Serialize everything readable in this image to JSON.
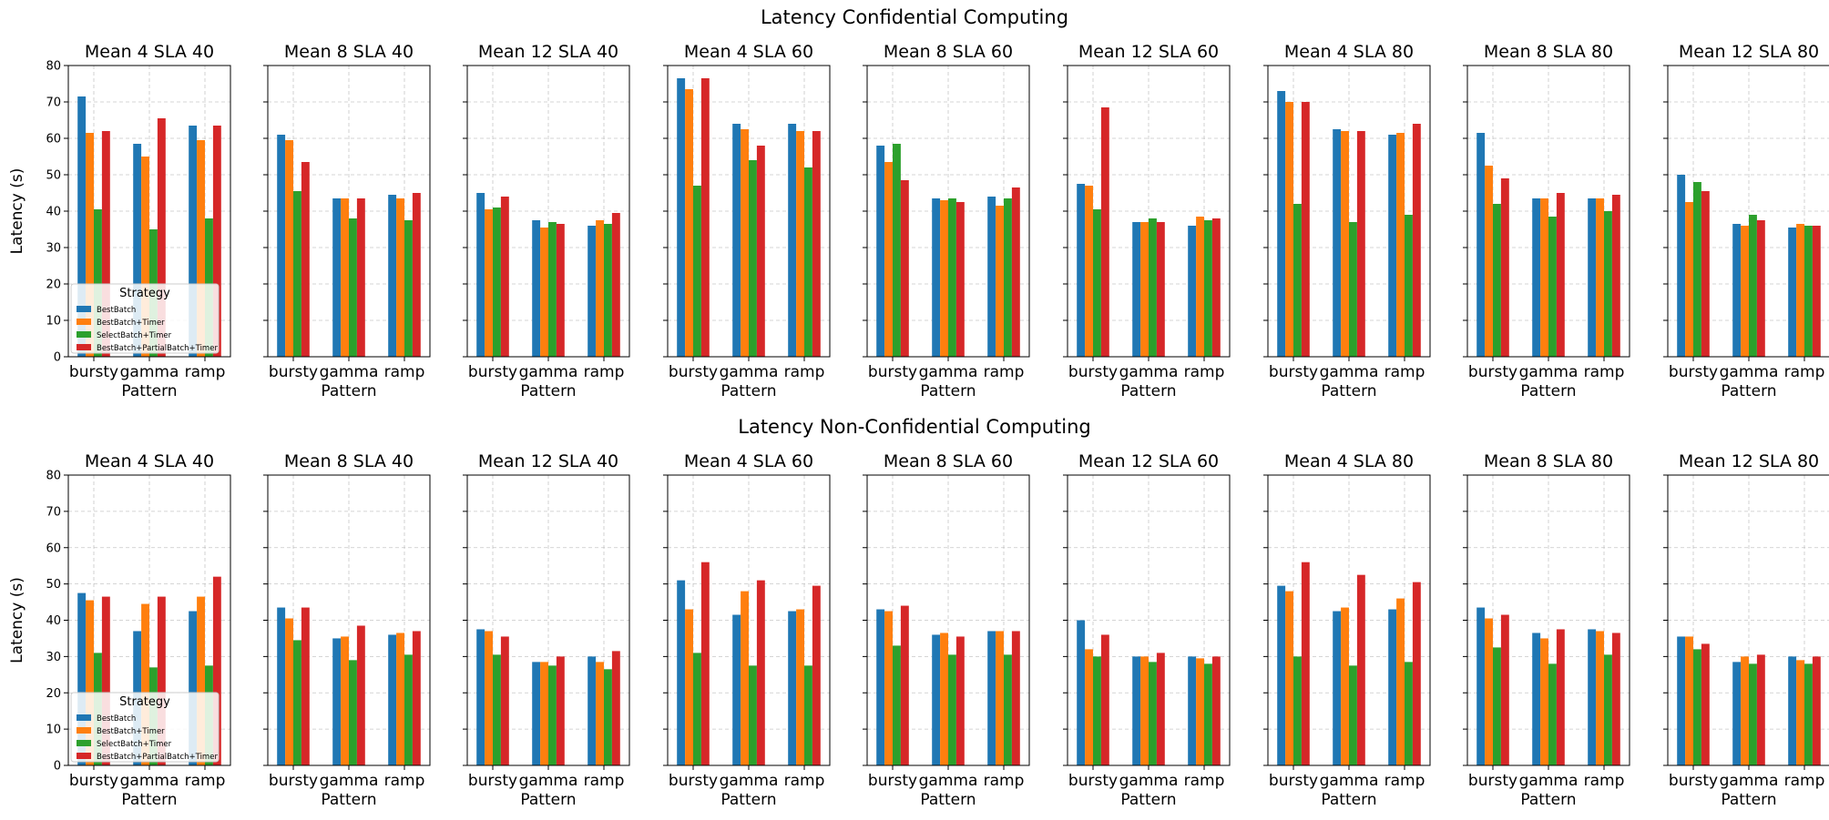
{
  "figure": {
    "row_titles": [
      "Latency Confidential Computing",
      "Latency Non-Confidential Computing"
    ]
  },
  "colors": {
    "BestBatch": "#1f77b4",
    "BestBatch+Timer": "#ff7f0e",
    "SelectBatch+Timer": "#2ca02c",
    "BestBatch+PartialBatch+Timer": "#d62728"
  },
  "chart_data": {
    "type": "bar",
    "categories": [
      "bursty",
      "gamma",
      "ramp"
    ],
    "xlabel": "Pattern",
    "ylabel": "Latency (s)",
    "ylim": [
      0,
      80
    ],
    "yticks": [
      0,
      10,
      20,
      30,
      40,
      50,
      60,
      70,
      80
    ],
    "grid": true,
    "legend": {
      "title": "Strategy",
      "placement": "lower-left (first panel of each row)",
      "entries": [
        "BestBatch",
        "BestBatch+Timer",
        "SelectBatch+Timer",
        "BestBatch+PartialBatch+Timer"
      ]
    },
    "rows": [
      {
        "title": "Latency Confidential Computing",
        "panels": [
          {
            "title": "Mean 4 SLA 40",
            "series": [
              {
                "name": "BestBatch",
                "values": [
                  71.5,
                  58.5,
                  63.5
                ]
              },
              {
                "name": "BestBatch+Timer",
                "values": [
                  61.5,
                  55,
                  59.5
                ]
              },
              {
                "name": "SelectBatch+Timer",
                "values": [
                  40.5,
                  35,
                  38
                ]
              },
              {
                "name": "BestBatch+PartialBatch+Timer",
                "values": [
                  62,
                  65.5,
                  63.5
                ]
              }
            ]
          },
          {
            "title": "Mean 8 SLA 40",
            "series": [
              {
                "name": "BestBatch",
                "values": [
                  61,
                  43.5,
                  44.5
                ]
              },
              {
                "name": "BestBatch+Timer",
                "values": [
                  59.5,
                  43.5,
                  43.5
                ]
              },
              {
                "name": "SelectBatch+Timer",
                "values": [
                  45.5,
                  38,
                  37.5
                ]
              },
              {
                "name": "BestBatch+PartialBatch+Timer",
                "values": [
                  53.5,
                  43.5,
                  45
                ]
              }
            ]
          },
          {
            "title": "Mean 12 SLA 40",
            "series": [
              {
                "name": "BestBatch",
                "values": [
                  45,
                  37.5,
                  36
                ]
              },
              {
                "name": "BestBatch+Timer",
                "values": [
                  40.5,
                  35.5,
                  37.5
                ]
              },
              {
                "name": "SelectBatch+Timer",
                "values": [
                  41,
                  37,
                  36.5
                ]
              },
              {
                "name": "BestBatch+PartialBatch+Timer",
                "values": [
                  44,
                  36.5,
                  39.5
                ]
              }
            ]
          },
          {
            "title": "Mean 4 SLA 60",
            "series": [
              {
                "name": "BestBatch",
                "values": [
                  76.5,
                  64,
                  64
                ]
              },
              {
                "name": "BestBatch+Timer",
                "values": [
                  73.5,
                  62.5,
                  62
                ]
              },
              {
                "name": "SelectBatch+Timer",
                "values": [
                  47,
                  54,
                  52
                ]
              },
              {
                "name": "BestBatch+PartialBatch+Timer",
                "values": [
                  76.5,
                  58,
                  62
                ]
              }
            ]
          },
          {
            "title": "Mean 8 SLA 60",
            "series": [
              {
                "name": "BestBatch",
                "values": [
                  58,
                  43.5,
                  44
                ]
              },
              {
                "name": "BestBatch+Timer",
                "values": [
                  53.5,
                  43,
                  41.5
                ]
              },
              {
                "name": "SelectBatch+Timer",
                "values": [
                  58.5,
                  43.5,
                  43.5
                ]
              },
              {
                "name": "BestBatch+PartialBatch+Timer",
                "values": [
                  48.5,
                  42.5,
                  46.5
                ]
              }
            ]
          },
          {
            "title": "Mean 12 SLA 60",
            "series": [
              {
                "name": "BestBatch",
                "values": [
                  47.5,
                  37,
                  36
                ]
              },
              {
                "name": "BestBatch+Timer",
                "values": [
                  47,
                  37,
                  38.5
                ]
              },
              {
                "name": "SelectBatch+Timer",
                "values": [
                  40.5,
                  38,
                  37.5
                ]
              },
              {
                "name": "BestBatch+PartialBatch+Timer",
                "values": [
                  68.5,
                  37,
                  38
                ]
              }
            ]
          },
          {
            "title": "Mean 4 SLA 80",
            "series": [
              {
                "name": "BestBatch",
                "values": [
                  73,
                  62.5,
                  61
                ]
              },
              {
                "name": "BestBatch+Timer",
                "values": [
                  70,
                  62,
                  61.5
                ]
              },
              {
                "name": "SelectBatch+Timer",
                "values": [
                  42,
                  37,
                  39
                ]
              },
              {
                "name": "BestBatch+PartialBatch+Timer",
                "values": [
                  70,
                  62,
                  64
                ]
              }
            ]
          },
          {
            "title": "Mean 8 SLA 80",
            "series": [
              {
                "name": "BestBatch",
                "values": [
                  61.5,
                  43.5,
                  43.5
                ]
              },
              {
                "name": "BestBatch+Timer",
                "values": [
                  52.5,
                  43.5,
                  43.5
                ]
              },
              {
                "name": "SelectBatch+Timer",
                "values": [
                  42,
                  38.5,
                  40
                ]
              },
              {
                "name": "BestBatch+PartialBatch+Timer",
                "values": [
                  49,
                  45,
                  44.5
                ]
              }
            ]
          },
          {
            "title": "Mean 12 SLA 80",
            "series": [
              {
                "name": "BestBatch",
                "values": [
                  50,
                  36.5,
                  35.5
                ]
              },
              {
                "name": "BestBatch+Timer",
                "values": [
                  42.5,
                  36,
                  36.5
                ]
              },
              {
                "name": "SelectBatch+Timer",
                "values": [
                  48,
                  39,
                  36
                ]
              },
              {
                "name": "BestBatch+PartialBatch+Timer",
                "values": [
                  45.5,
                  37.5,
                  36
                ]
              }
            ]
          }
        ]
      },
      {
        "title": "Latency Non-Confidential Computing",
        "panels": [
          {
            "title": "Mean 4 SLA 40",
            "series": [
              {
                "name": "BestBatch",
                "values": [
                  47.5,
                  37,
                  42.5
                ]
              },
              {
                "name": "BestBatch+Timer",
                "values": [
                  45.5,
                  44.5,
                  46.5
                ]
              },
              {
                "name": "SelectBatch+Timer",
                "values": [
                  31,
                  27,
                  27.5
                ]
              },
              {
                "name": "BestBatch+PartialBatch+Timer",
                "values": [
                  46.5,
                  46.5,
                  52
                ]
              }
            ]
          },
          {
            "title": "Mean 8 SLA 40",
            "series": [
              {
                "name": "BestBatch",
                "values": [
                  43.5,
                  35,
                  36
                ]
              },
              {
                "name": "BestBatch+Timer",
                "values": [
                  40.5,
                  35.5,
                  36.5
                ]
              },
              {
                "name": "SelectBatch+Timer",
                "values": [
                  34.5,
                  29,
                  30.5
                ]
              },
              {
                "name": "BestBatch+PartialBatch+Timer",
                "values": [
                  43.5,
                  38.5,
                  37
                ]
              }
            ]
          },
          {
            "title": "Mean 12 SLA 40",
            "series": [
              {
                "name": "BestBatch",
                "values": [
                  37.5,
                  28.5,
                  30
                ]
              },
              {
                "name": "BestBatch+Timer",
                "values": [
                  37,
                  28.5,
                  28.5
                ]
              },
              {
                "name": "SelectBatch+Timer",
                "values": [
                  30.5,
                  27.5,
                  26.5
                ]
              },
              {
                "name": "BestBatch+PartialBatch+Timer",
                "values": [
                  35.5,
                  30,
                  31.5
                ]
              }
            ]
          },
          {
            "title": "Mean 4 SLA 60",
            "series": [
              {
                "name": "BestBatch",
                "values": [
                  51,
                  41.5,
                  42.5
                ]
              },
              {
                "name": "BestBatch+Timer",
                "values": [
                  43,
                  48,
                  43
                ]
              },
              {
                "name": "SelectBatch+Timer",
                "values": [
                  31,
                  27.5,
                  27.5
                ]
              },
              {
                "name": "BestBatch+PartialBatch+Timer",
                "values": [
                  56,
                  51,
                  49.5
                ]
              }
            ]
          },
          {
            "title": "Mean 8 SLA 60",
            "series": [
              {
                "name": "BestBatch",
                "values": [
                  43,
                  36,
                  37
                ]
              },
              {
                "name": "BestBatch+Timer",
                "values": [
                  42.5,
                  36.5,
                  37
                ]
              },
              {
                "name": "SelectBatch+Timer",
                "values": [
                  33,
                  30.5,
                  30.5
                ]
              },
              {
                "name": "BestBatch+PartialBatch+Timer",
                "values": [
                  44,
                  35.5,
                  37
                ]
              }
            ]
          },
          {
            "title": "Mean 12 SLA 60",
            "series": [
              {
                "name": "BestBatch",
                "values": [
                  40,
                  30,
                  30
                ]
              },
              {
                "name": "BestBatch+Timer",
                "values": [
                  32,
                  30,
                  29.5
                ]
              },
              {
                "name": "SelectBatch+Timer",
                "values": [
                  30,
                  28.5,
                  28
                ]
              },
              {
                "name": "BestBatch+PartialBatch+Timer",
                "values": [
                  36,
                  31,
                  30
                ]
              }
            ]
          },
          {
            "title": "Mean 4 SLA 80",
            "series": [
              {
                "name": "BestBatch",
                "values": [
                  49.5,
                  42.5,
                  43
                ]
              },
              {
                "name": "BestBatch+Timer",
                "values": [
                  48,
                  43.5,
                  46
                ]
              },
              {
                "name": "SelectBatch+Timer",
                "values": [
                  30,
                  27.5,
                  28.5
                ]
              },
              {
                "name": "BestBatch+PartialBatch+Timer",
                "values": [
                  56,
                  52.5,
                  50.5
                ]
              }
            ]
          },
          {
            "title": "Mean 8 SLA 80",
            "series": [
              {
                "name": "BestBatch",
                "values": [
                  43.5,
                  36.5,
                  37.5
                ]
              },
              {
                "name": "BestBatch+Timer",
                "values": [
                  40.5,
                  35,
                  37
                ]
              },
              {
                "name": "SelectBatch+Timer",
                "values": [
                  32.5,
                  28,
                  30.5
                ]
              },
              {
                "name": "BestBatch+PartialBatch+Timer",
                "values": [
                  41.5,
                  37.5,
                  36.5
                ]
              }
            ]
          },
          {
            "title": "Mean 12 SLA 80",
            "series": [
              {
                "name": "BestBatch",
                "values": [
                  35.5,
                  28.5,
                  30
                ]
              },
              {
                "name": "BestBatch+Timer",
                "values": [
                  35.5,
                  30,
                  29
                ]
              },
              {
                "name": "SelectBatch+Timer",
                "values": [
                  32,
                  28,
                  28
                ]
              },
              {
                "name": "BestBatch+PartialBatch+Timer",
                "values": [
                  33.5,
                  30.5,
                  30
                ]
              }
            ]
          }
        ]
      }
    ]
  }
}
